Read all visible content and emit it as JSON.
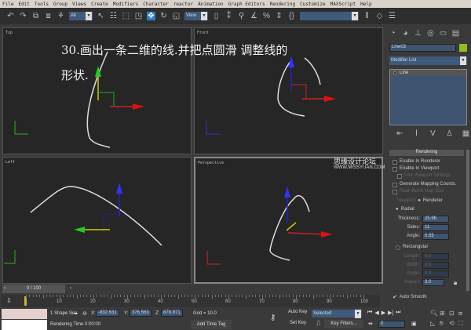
{
  "menu": [
    "File",
    "Edit",
    "Tools",
    "Group",
    "Views",
    "Create",
    "Modifiers",
    "Character",
    "reactor",
    "Animation",
    "Graph Editors",
    "Rendering",
    "Customize",
    "MAXScript",
    "Help"
  ],
  "toolbar": {
    "selection_filter": "All",
    "ref_coord": "View",
    "named_selection": ""
  },
  "caption": {
    "line1": "30.画出一条二维的线.并把点圆滑 调整线的",
    "line2": "形状."
  },
  "viewports": {
    "top": "Top",
    "front": "Front",
    "left": "Left",
    "perspective": "Perspective"
  },
  "watermark": {
    "cn": "思缘设计论坛",
    "url": "WWW.MISSYUAN.COM"
  },
  "panel": {
    "object_name": "Line03",
    "object_color": "#8fbf1f",
    "modifier_list": "Modifier List",
    "stack_item": "Line",
    "rollout": "Rendering",
    "enable_renderer": "Enable In Renderer",
    "enable_viewport": "Enable In Viewport",
    "use_viewport": "Use Viewport Settings",
    "gen_mapping": "Generate Mapping Coords.",
    "real_world": "Real-World Map Size",
    "viewport_radio": "Viewport",
    "renderer_radio": "Renderer",
    "radial": "Radial",
    "thickness_label": "Thickness:",
    "thickness": "25.96",
    "sides_label": "Sides:",
    "sides": "11",
    "angle_label": "Angle:",
    "angle": "0.55",
    "rectangular": "Rectangular",
    "length_label": "Length:",
    "length": "6.0",
    "width_label": "Width:",
    "width": "2.0",
    "angle2_label": "Angle:",
    "angle2": "0.0",
    "aspect_label": "Aspect:",
    "aspect": "3.0",
    "auto_smooth": "Auto Smooth"
  },
  "timeline": {
    "frame": "0 / 100",
    "ticks": [
      "10",
      "20",
      "30",
      "40",
      "50",
      "60",
      "70",
      "80",
      "90",
      "100"
    ],
    "position": 0
  },
  "status": {
    "selection": "1 Shape Se",
    "x_label": "X:",
    "x": "-832.631",
    "y_label": "Y:",
    "y": "376.563",
    "z_label": "Z:",
    "z": "878.971",
    "grid": "Grid = 10.0",
    "rendering_time": "Rendering Time  0:00:00",
    "add_time_tag": "Add Time Tag",
    "auto_key": "Auto Key",
    "set_key": "Set Key",
    "key_mode": "Selected",
    "key_filters": "Key Filters...",
    "current_frame": "0"
  }
}
